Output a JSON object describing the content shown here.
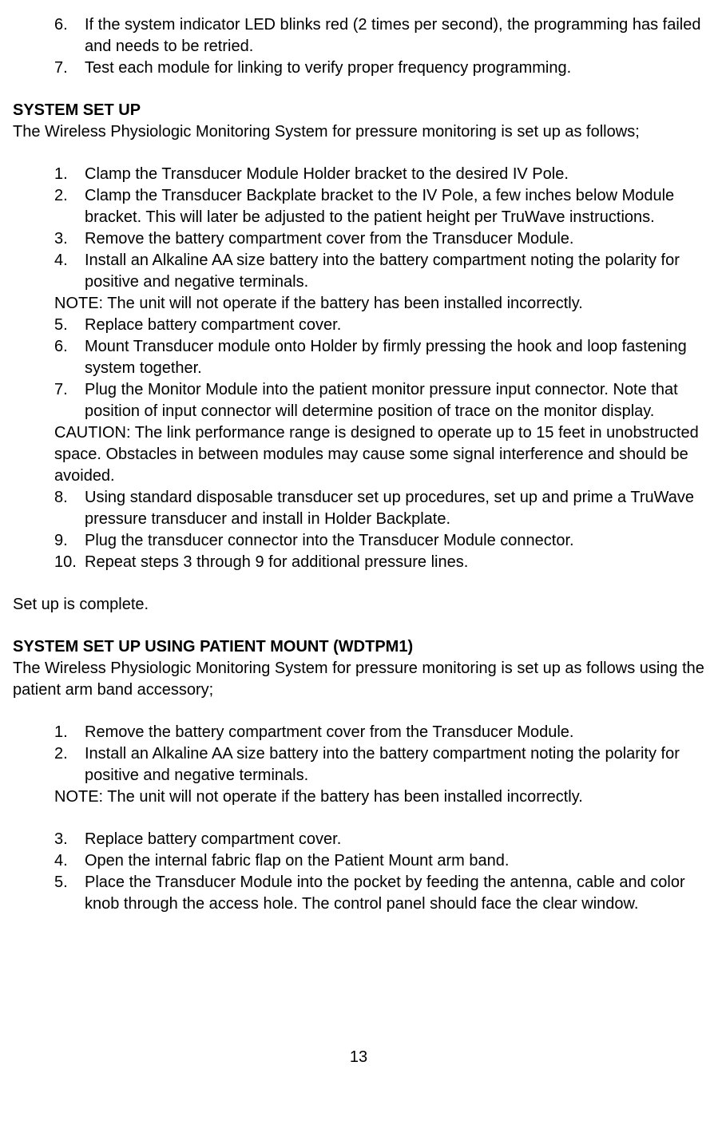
{
  "intro_list": [
    {
      "num": "6.",
      "text": "If the system indicator LED blinks red (2 times per second), the programming has failed and needs to be retried."
    },
    {
      "num": "7.",
      "text": "Test each module for linking to verify proper frequency programming."
    }
  ],
  "section1": {
    "heading": "SYSTEM SET UP",
    "intro": "The Wireless Physiologic Monitoring System for pressure monitoring is set up as follows;",
    "list_a": [
      {
        "num": "1.",
        "text": "Clamp the Transducer Module Holder bracket to the desired IV Pole."
      },
      {
        "num": "2.",
        "text": "Clamp the Transducer Backplate bracket to the IV Pole, a few inches below Module bracket.  This will later be adjusted to the patient height per TruWave instructions."
      },
      {
        "num": "3.",
        "text": "Remove the battery compartment cover from the Transducer Module."
      },
      {
        "num": "4.",
        "text": "Install an Alkaline AA size battery into the battery compartment noting the polarity for positive and negative terminals."
      }
    ],
    "note1": "NOTE: The unit will not operate if the battery has been installed incorrectly.",
    "list_b": [
      {
        "num": "5.",
        "text": "Replace battery compartment cover."
      },
      {
        "num": "6.",
        "text": "Mount Transducer module onto Holder by firmly pressing the hook and loop fastening system together."
      },
      {
        "num": "7.",
        "text": "Plug the Monitor Module into the patient monitor pressure input connector.  Note that position of input connector will determine position of trace on the monitor display."
      }
    ],
    "caution": "CAUTION: The link performance range is designed to operate up to 15 feet in unobstructed space.  Obstacles in between modules may cause some signal interference and should be avoided.",
    "list_c": [
      {
        "num": "8.",
        "text": "Using standard disposable transducer set up procedures, set up and prime a TruWave pressure transducer and install in Holder Backplate."
      },
      {
        "num": "9.",
        "text": "Plug the transducer connector into the Transducer Module connector."
      },
      {
        "num": "10.",
        "text": "Repeat steps 3 through 9 for additional pressure lines."
      }
    ],
    "outro": "Set up is complete."
  },
  "section2": {
    "heading": "SYSTEM SET UP USING PATIENT MOUNT (WDTPM1)",
    "intro": "The Wireless Physiologic Monitoring System for pressure monitoring is set up as follows using the patient arm band accessory;",
    "list_a": [
      {
        "num": "1.",
        "text": "Remove the battery compartment cover from the Transducer Module."
      },
      {
        "num": "2.",
        "text": "Install an Alkaline AA size battery into the battery compartment noting the polarity for positive and negative terminals."
      }
    ],
    "note1": "NOTE: The unit will not operate if the battery has been installed incorrectly.",
    "list_b": [
      {
        "num": "3.",
        "text": "Replace battery compartment cover."
      },
      {
        "num": "4.",
        "text": "Open the internal fabric flap on the Patient Mount arm band."
      },
      {
        "num": "5.",
        "text": "Place the Transducer Module into the pocket by feeding the antenna, cable and color knob through the access hole.  The control panel should face the clear window."
      }
    ]
  },
  "page_number": "13"
}
